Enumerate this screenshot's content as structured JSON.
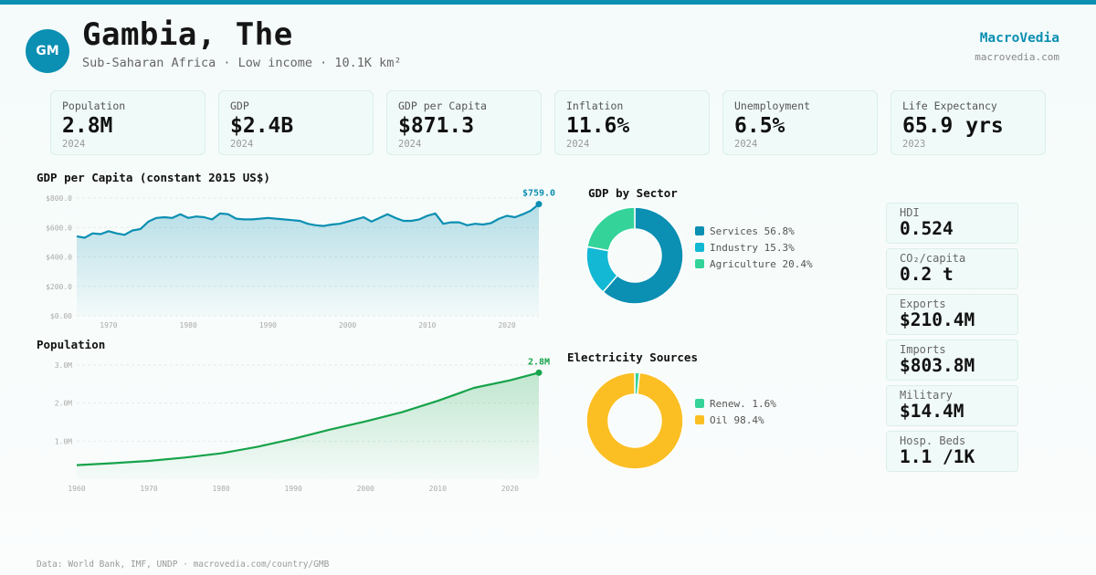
{
  "header": {
    "avatar": "GM",
    "title": "Gambia, The",
    "subtitle": "Sub-Saharan Africa · Low income · 10.1K km²",
    "brand": "MacroVedia",
    "brand_url": "macrovedia.com"
  },
  "kpis": [
    {
      "label": "Population",
      "value": "2.8M",
      "year": "2024"
    },
    {
      "label": "GDP",
      "value": "$2.4B",
      "year": "2024"
    },
    {
      "label": "GDP per Capita",
      "value": "$871.3",
      "year": "2024"
    },
    {
      "label": "Inflation",
      "value": "11.6%",
      "year": "2024"
    },
    {
      "label": "Unemployment",
      "value": "6.5%",
      "year": "2024"
    },
    {
      "label": "Life Expectancy",
      "value": "65.9 yrs",
      "year": "2023"
    }
  ],
  "stats": [
    {
      "label": "HDI",
      "value": "0.524"
    },
    {
      "label": "CO₂/capita",
      "value": "0.2 t"
    },
    {
      "label": "Exports",
      "value": "$210.4M"
    },
    {
      "label": "Imports",
      "value": "$803.8M"
    },
    {
      "label": "Military",
      "value": "$14.4M"
    },
    {
      "label": "Hosp. Beds",
      "value": "1.1 /1K"
    }
  ],
  "footer": "Data: World Bank, IMF, UNDP · macrovedia.com/country/GMB",
  "colors": {
    "accent": "#0b8fb2",
    "services": "#0b8fb2",
    "industry": "#12b8d4",
    "agriculture": "#34d399",
    "population": "#16a34a",
    "renewable": "#34d399",
    "oil": "#fbbf24"
  },
  "chart_data": [
    {
      "type": "area",
      "title": "GDP per Capita (constant 2015 US$)",
      "end_label": "$759.0",
      "xlim": [
        1966,
        2024
      ],
      "ylim": [
        0,
        800
      ],
      "y_ticks": [
        0,
        200,
        400,
        600,
        800
      ],
      "y_tick_labels": [
        "$0.00",
        "$200.0",
        "$400.0",
        "$600.0",
        "$800.0"
      ],
      "x_ticks": [
        1970,
        1980,
        1990,
        2000,
        2010,
        2020
      ],
      "x_tick_labels": [
        "1970",
        "1980",
        "1990",
        "2000",
        "2010",
        "2020"
      ],
      "grid": true,
      "x": [
        1966,
        1967,
        1968,
        1969,
        1970,
        1971,
        1972,
        1973,
        1974,
        1975,
        1976,
        1977,
        1978,
        1979,
        1980,
        1981,
        1982,
        1983,
        1984,
        1985,
        1986,
        1987,
        1988,
        1989,
        1990,
        1991,
        1992,
        1993,
        1994,
        1995,
        1996,
        1997,
        1998,
        1999,
        2000,
        2001,
        2002,
        2003,
        2004,
        2005,
        2006,
        2007,
        2008,
        2009,
        2010,
        2011,
        2012,
        2013,
        2014,
        2015,
        2016,
        2017,
        2018,
        2019,
        2020,
        2021,
        2022,
        2023,
        2024
      ],
      "values": [
        540,
        530,
        560,
        555,
        575,
        560,
        550,
        580,
        590,
        640,
        665,
        670,
        665,
        690,
        665,
        675,
        670,
        655,
        695,
        690,
        660,
        655,
        655,
        660,
        665,
        660,
        655,
        650,
        645,
        625,
        615,
        610,
        620,
        625,
        640,
        655,
        670,
        640,
        665,
        690,
        665,
        645,
        645,
        655,
        680,
        695,
        625,
        635,
        635,
        615,
        625,
        620,
        630,
        660,
        680,
        670,
        690,
        715,
        759
      ]
    },
    {
      "type": "pie",
      "title": "GDP by Sector",
      "categories": [
        "Services",
        "Industry",
        "Agriculture"
      ],
      "values": [
        56.8,
        15.3,
        20.4
      ],
      "legend": [
        "Services 56.8%",
        "Industry 15.3%",
        "Agriculture 20.4%"
      ],
      "legend_position": "right"
    },
    {
      "type": "area",
      "title": "Population",
      "end_label": "2.8M",
      "xlim": [
        1960,
        2024
      ],
      "ylim": [
        0,
        3
      ],
      "y_ticks": [
        1,
        2,
        3
      ],
      "y_tick_labels": [
        "1.0M",
        "2.0M",
        "3.0M"
      ],
      "x_ticks": [
        1960,
        1970,
        1980,
        1990,
        2000,
        2010,
        2020
      ],
      "x_tick_labels": [
        "1960",
        "1970",
        "1980",
        "1990",
        "2000",
        "2010",
        "2020"
      ],
      "grid": true,
      "x": [
        1960,
        1965,
        1970,
        1975,
        1980,
        1985,
        1990,
        1995,
        2000,
        2005,
        2010,
        2015,
        2020,
        2024
      ],
      "values": [
        0.37,
        0.42,
        0.48,
        0.57,
        0.68,
        0.85,
        1.06,
        1.3,
        1.52,
        1.76,
        2.06,
        2.4,
        2.6,
        2.8
      ]
    },
    {
      "type": "pie",
      "title": "Electricity Sources",
      "categories": [
        "Renew.",
        "Oil"
      ],
      "values": [
        1.6,
        98.4
      ],
      "legend": [
        "Renew. 1.6%",
        "Oil 98.4%"
      ],
      "legend_position": "right"
    }
  ]
}
